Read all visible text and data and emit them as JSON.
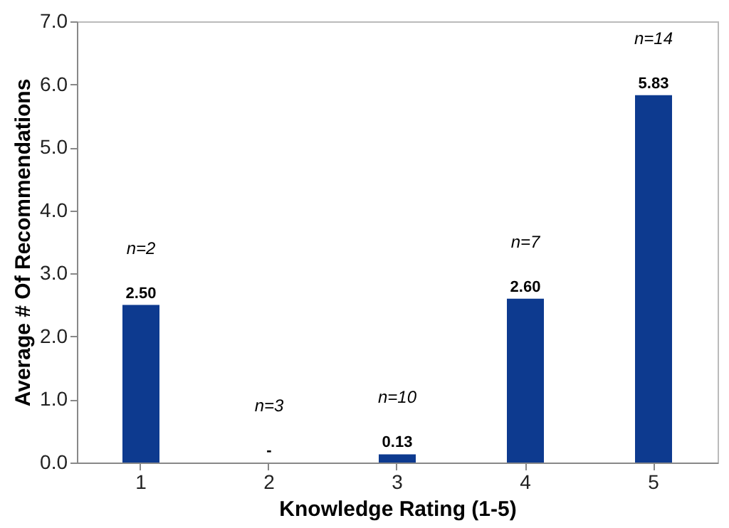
{
  "chart_data": {
    "type": "bar",
    "xlabel": "Knowledge Rating (1-5)",
    "ylabel": "Average # Of Recommendations",
    "categories": [
      "1",
      "2",
      "3",
      "4",
      "5"
    ],
    "values": [
      2.5,
      0,
      0.13,
      2.6,
      5.83
    ],
    "value_labels": [
      "2.50",
      "-",
      "0.13",
      "2.60",
      "5.83"
    ],
    "color": "#0d3a8f",
    "ylim": [
      0,
      7
    ],
    "yticks": [
      {
        "value": 0,
        "label": "0.0"
      },
      {
        "value": 1,
        "label": "1.0"
      },
      {
        "value": 2,
        "label": "2.0"
      },
      {
        "value": 3,
        "label": "3.0"
      },
      {
        "value": 4,
        "label": "4.0"
      },
      {
        "value": 5,
        "label": "5.0"
      },
      {
        "value": 6,
        "label": "6.0"
      },
      {
        "value": 7,
        "label": "7.0"
      }
    ],
    "grid": false,
    "annotations": [
      "n=2",
      "n=3",
      "n=10",
      "n=7",
      "n=14"
    ]
  }
}
